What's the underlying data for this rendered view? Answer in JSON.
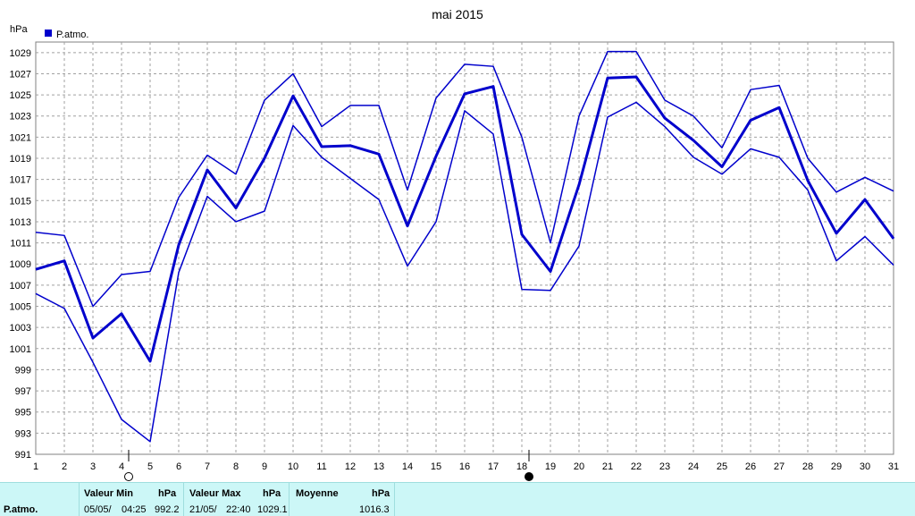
{
  "chart_data": {
    "type": "line",
    "title": "mai 2015",
    "ylabel": "hPa",
    "legend": {
      "label": "P.atmo.",
      "placement": "top-left",
      "color": "#0000cc"
    },
    "x": [
      1,
      2,
      3,
      4,
      5,
      6,
      7,
      8,
      9,
      10,
      11,
      12,
      13,
      14,
      15,
      16,
      17,
      18,
      19,
      20,
      21,
      22,
      23,
      24,
      25,
      26,
      27,
      28,
      29,
      30,
      31
    ],
    "xlim": [
      1,
      31
    ],
    "ylim": [
      991,
      1030
    ],
    "yticks": [
      991,
      993,
      995,
      997,
      999,
      1001,
      1003,
      1005,
      1007,
      1009,
      1011,
      1013,
      1015,
      1017,
      1019,
      1021,
      1023,
      1025,
      1027,
      1029
    ],
    "grid": true,
    "moon_phases": [
      {
        "day": 4,
        "phase": "full-moon"
      },
      {
        "day": 18,
        "phase": "new-moon"
      }
    ],
    "series": [
      {
        "role": "max",
        "values": [
          1012.0,
          1011.7,
          1005.0,
          1008.0,
          1008.3,
          1015.3,
          1019.3,
          1017.5,
          1024.5,
          1027.0,
          1022.0,
          1024.0,
          1024.0,
          1016.0,
          1024.7,
          1027.9,
          1027.7,
          1021.0,
          1011.0,
          1023.0,
          1029.1,
          1029.1,
          1024.5,
          1023.0,
          1020.0,
          1025.5,
          1025.9,
          1019.0,
          1015.8,
          1017.2,
          1015.9
        ]
      },
      {
        "role": "mean",
        "values": [
          1008.5,
          1009.3,
          1002.0,
          1004.3,
          999.8,
          1010.8,
          1017.9,
          1014.3,
          1019.0,
          1024.9,
          1020.1,
          1020.2,
          1019.4,
          1012.6,
          1019.2,
          1025.1,
          1025.8,
          1011.8,
          1008.3,
          1016.5,
          1026.6,
          1026.7,
          1022.8,
          1020.7,
          1018.2,
          1022.6,
          1023.8,
          1016.9,
          1011.9,
          1015.1,
          1011.4
        ]
      },
      {
        "role": "min",
        "values": [
          1006.2,
          1004.8,
          999.7,
          994.3,
          992.2,
          1008.2,
          1015.4,
          1013.0,
          1014.0,
          1022.1,
          1019.1,
          1017.1,
          1015.1,
          1008.8,
          1013.0,
          1023.5,
          1021.3,
          1006.6,
          1006.5,
          1010.7,
          1022.9,
          1024.3,
          1022.0,
          1019.1,
          1017.5,
          1019.9,
          1019.1,
          1016.0,
          1009.3,
          1011.6,
          1008.9
        ]
      }
    ]
  },
  "summary": {
    "label": "P.atmo.",
    "min": {
      "title": "Valeur Min",
      "unit": "hPa",
      "date": "05/05/",
      "time": "04:25",
      "value": "992.2"
    },
    "max": {
      "title": "Valeur Max",
      "unit": "hPa",
      "date": "21/05/",
      "time": "22:40",
      "value": "1029.1"
    },
    "mean": {
      "title": "Moyenne",
      "unit": "hPa",
      "value": "1016.3"
    }
  }
}
